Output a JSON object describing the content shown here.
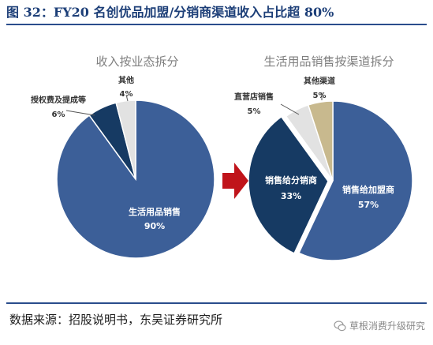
{
  "figure_title": "图 32：FY20 名创优品加盟/分销商渠道收入占比超 80%",
  "source": "数据来源：招股说明书，东吴证券研究所",
  "watermark": "草根消费升级研究",
  "colors": {
    "dark_navy": "#163a63",
    "mid_blue": "#3c5f98",
    "light_gray": "#e2e2e2",
    "tan": "#c8b98e",
    "arrow": "#c0141b"
  },
  "chart_data": [
    {
      "type": "pie",
      "title": "收入按业态拆分",
      "slices": [
        {
          "label": "生活用品销售",
          "value": 90,
          "text": "90%"
        },
        {
          "label": "授权费及提成等",
          "value": 6,
          "text": "6%"
        },
        {
          "label": "其他",
          "value": 4,
          "text": "4%"
        }
      ]
    },
    {
      "type": "pie",
      "title": "生活用品销售按渠道拆分",
      "slices": [
        {
          "label": "销售给加盟商",
          "value": 57,
          "text": "57%"
        },
        {
          "label": "销售给分销商",
          "value": 33,
          "text": "33%"
        },
        {
          "label": "直营店销售",
          "value": 5,
          "text": "5%"
        },
        {
          "label": "其他渠道",
          "value": 5,
          "text": "5%"
        }
      ]
    }
  ]
}
